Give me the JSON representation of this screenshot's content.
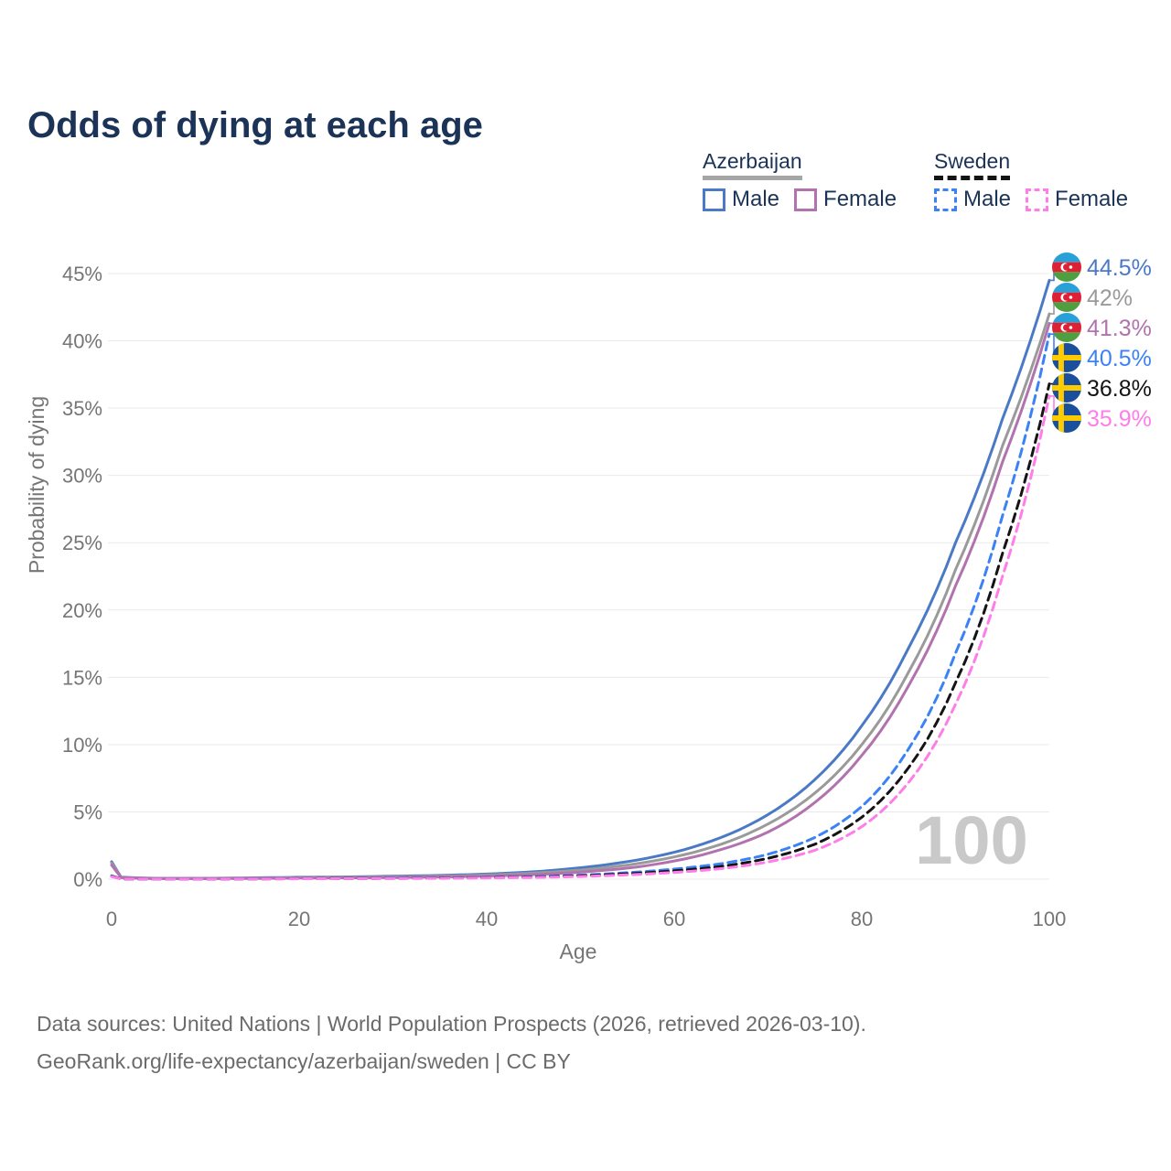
{
  "title": "Odds of dying at each age",
  "watermark": "100",
  "legend": {
    "groups": [
      {
        "label": "Azerbaijan",
        "line_style": "solid",
        "line_color": "#a6a6a6",
        "items": [
          {
            "label": "Male",
            "color": "#4a79c5",
            "dash": false
          },
          {
            "label": "Female",
            "color": "#b172ae",
            "dash": false
          }
        ]
      },
      {
        "label": "Sweden",
        "line_style": "dashed",
        "line_color": "#141414",
        "items": [
          {
            "label": "Male",
            "color": "#3b82f6",
            "dash": true
          },
          {
            "label": "Female",
            "color": "#ff7de9",
            "dash": true
          }
        ]
      }
    ]
  },
  "axes": {
    "x_label": "Age",
    "y_label": "Probability of dying",
    "x_ticks": [
      "0",
      "20",
      "40",
      "60",
      "80",
      "100"
    ],
    "y_ticks": [
      "0%",
      "5%",
      "10%",
      "15%",
      "20%",
      "25%",
      "30%",
      "35%",
      "40%",
      "45%"
    ]
  },
  "chart_data": {
    "type": "line",
    "title": "Odds of dying at each age",
    "xlabel": "Age",
    "ylabel": "Probability of dying",
    "xlim": [
      0,
      100
    ],
    "ylim": [
      0,
      46
    ],
    "grid": "horizontal",
    "legend_position": "top-right",
    "x": [
      0,
      1,
      5,
      10,
      15,
      20,
      25,
      30,
      35,
      40,
      45,
      50,
      55,
      60,
      65,
      70,
      75,
      80,
      85,
      90,
      95,
      100
    ],
    "series": [
      {
        "id": "azerbaijan-male",
        "name": "Azerbaijan Male",
        "country": "Azerbaijan",
        "sex": "Male",
        "color": "#4a79c5",
        "dash": false,
        "flag": "azerbaijan",
        "end_label": "44.5%",
        "values": [
          1.3,
          0.15,
          0.06,
          0.06,
          0.1,
          0.14,
          0.17,
          0.22,
          0.28,
          0.38,
          0.55,
          0.85,
          1.3,
          2.0,
          3.1,
          4.8,
          7.4,
          11.4,
          17.2,
          25.0,
          34.2,
          44.5
        ]
      },
      {
        "id": "azerbaijan-both",
        "name": "Azerbaijan Both sexes",
        "country": "Azerbaijan",
        "sex": "Both",
        "color": "#9a9a9a",
        "dash": false,
        "flag": "azerbaijan",
        "end_label": "42%",
        "values": [
          1.2,
          0.13,
          0.05,
          0.05,
          0.08,
          0.11,
          0.14,
          0.17,
          0.22,
          0.31,
          0.45,
          0.68,
          1.05,
          1.65,
          2.6,
          4.1,
          6.4,
          10.0,
          15.4,
          23.0,
          32.2,
          42.0
        ]
      },
      {
        "id": "azerbaijan-female",
        "name": "Azerbaijan Female",
        "country": "Azerbaijan",
        "sex": "Female",
        "color": "#b172ae",
        "dash": false,
        "flag": "azerbaijan",
        "end_label": "41.3%",
        "values": [
          1.05,
          0.12,
          0.04,
          0.04,
          0.06,
          0.08,
          0.1,
          0.12,
          0.16,
          0.23,
          0.34,
          0.52,
          0.82,
          1.35,
          2.2,
          3.5,
          5.7,
          9.2,
          14.4,
          21.8,
          31.0,
          41.3
        ]
      },
      {
        "id": "sweden-male",
        "name": "Sweden Male",
        "country": "Sweden",
        "sex": "Male",
        "color": "#3b82f6",
        "dash": true,
        "flag": "sweden",
        "end_label": "40.5%",
        "values": [
          0.25,
          0.02,
          0.01,
          0.01,
          0.03,
          0.05,
          0.06,
          0.08,
          0.1,
          0.13,
          0.19,
          0.3,
          0.48,
          0.75,
          1.15,
          1.85,
          3.1,
          5.4,
          9.7,
          16.8,
          27.0,
          40.5
        ]
      },
      {
        "id": "sweden-both",
        "name": "Sweden Both sexes",
        "country": "Sweden",
        "sex": "Both",
        "color": "#141414",
        "dash": true,
        "flag": "sweden",
        "end_label": "36.8%",
        "values": [
          0.22,
          0.02,
          0.01,
          0.01,
          0.02,
          0.04,
          0.05,
          0.06,
          0.08,
          0.11,
          0.16,
          0.25,
          0.4,
          0.62,
          0.95,
          1.55,
          2.6,
          4.6,
          8.3,
          14.6,
          24.2,
          36.8
        ]
      },
      {
        "id": "sweden-female",
        "name": "Sweden Female",
        "country": "Sweden",
        "sex": "Female",
        "color": "#ff7de9",
        "dash": true,
        "flag": "sweden",
        "end_label": "35.9%",
        "values": [
          0.19,
          0.02,
          0.01,
          0.01,
          0.02,
          0.03,
          0.04,
          0.05,
          0.06,
          0.09,
          0.13,
          0.2,
          0.32,
          0.5,
          0.78,
          1.28,
          2.15,
          3.9,
          7.2,
          13.0,
          22.5,
          35.9
        ]
      }
    ]
  },
  "colors": {
    "title_text": "#1b3357",
    "tick_text": "#757575",
    "gridline": "#e9e9e9",
    "watermark": "#c9c9c9",
    "footer_text": "#6b6b6b",
    "azerbaijan_flag": {
      "blue": "#2aa0d8",
      "red": "#dd2033",
      "green": "#4f9e3f"
    },
    "sweden_flag": {
      "blue": "#1a4f9c",
      "yellow": "#fecb00"
    }
  },
  "footer": {
    "line1": "Data sources: United Nations | World Population Prospects (2026, retrieved 2026-03-10).",
    "line2": "GeoRank.org/life-expectancy/azerbaijan/sweden | CC BY"
  }
}
